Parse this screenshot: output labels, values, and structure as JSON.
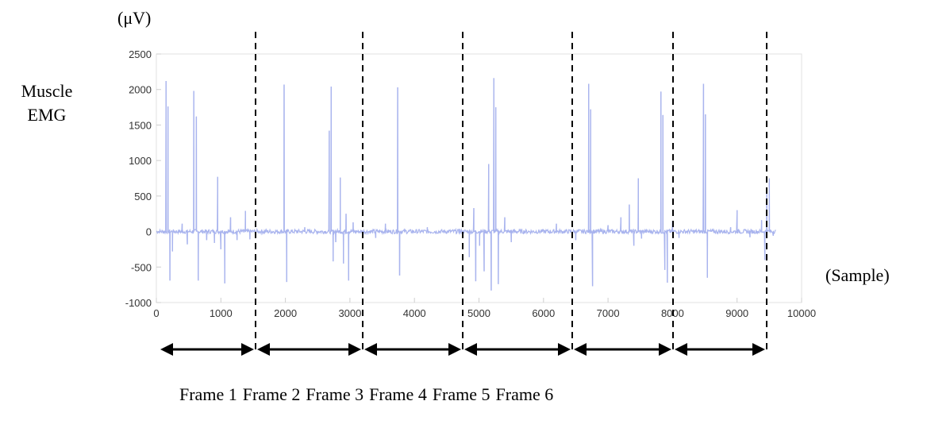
{
  "chart_data": {
    "type": "line",
    "title": "",
    "ylabel_lines": [
      "Muscle",
      "EMG"
    ],
    "yunit": "(μV)",
    "xunit": "(Sample)",
    "xlim": [
      0,
      10000
    ],
    "ylim": [
      -1000,
      2500
    ],
    "xticks": [
      "0",
      "1000",
      "2000",
      "3000",
      "4000",
      "5000",
      "6000",
      "7000",
      "8000",
      "9000",
      "10000"
    ],
    "yticks": [
      "2500",
      "2000",
      "1500",
      "1000",
      "500",
      "0",
      "-500",
      "-1000"
    ],
    "series_color": "#a9b4ee",
    "spikes": [
      {
        "x": 150,
        "y": 2120
      },
      {
        "x": 180,
        "y": 1760
      },
      {
        "x": 210,
        "y": -690
      },
      {
        "x": 250,
        "y": -280
      },
      {
        "x": 400,
        "y": 110
      },
      {
        "x": 480,
        "y": -180
      },
      {
        "x": 580,
        "y": 1980
      },
      {
        "x": 620,
        "y": 1620
      },
      {
        "x": 650,
        "y": -690
      },
      {
        "x": 780,
        "y": -120
      },
      {
        "x": 900,
        "y": -160
      },
      {
        "x": 950,
        "y": 770
      },
      {
        "x": 1000,
        "y": -250
      },
      {
        "x": 1060,
        "y": -730
      },
      {
        "x": 1150,
        "y": 200
      },
      {
        "x": 1250,
        "y": -120
      },
      {
        "x": 1380,
        "y": 290
      },
      {
        "x": 1450,
        "y": -110
      },
      {
        "x": 1980,
        "y": 2070
      },
      {
        "x": 2020,
        "y": -710
      },
      {
        "x": 2300,
        "y": 60
      },
      {
        "x": 2680,
        "y": 1420
      },
      {
        "x": 2710,
        "y": 2040
      },
      {
        "x": 2740,
        "y": -420
      },
      {
        "x": 2780,
        "y": -150
      },
      {
        "x": 2850,
        "y": 760
      },
      {
        "x": 2900,
        "y": -450
      },
      {
        "x": 2940,
        "y": 250
      },
      {
        "x": 2980,
        "y": -690
      },
      {
        "x": 3050,
        "y": 130
      },
      {
        "x": 3400,
        "y": -90
      },
      {
        "x": 3550,
        "y": 110
      },
      {
        "x": 3740,
        "y": 2030
      },
      {
        "x": 3770,
        "y": -620
      },
      {
        "x": 4200,
        "y": 60
      },
      {
        "x": 4700,
        "y": 40
      },
      {
        "x": 4850,
        "y": -360
      },
      {
        "x": 4920,
        "y": 330
      },
      {
        "x": 4950,
        "y": -700
      },
      {
        "x": 5010,
        "y": -200
      },
      {
        "x": 5080,
        "y": -560
      },
      {
        "x": 5150,
        "y": 950
      },
      {
        "x": 5190,
        "y": -830
      },
      {
        "x": 5230,
        "y": 2160
      },
      {
        "x": 5260,
        "y": 1750
      },
      {
        "x": 5300,
        "y": -740
      },
      {
        "x": 5400,
        "y": 200
      },
      {
        "x": 5500,
        "y": -150
      },
      {
        "x": 6200,
        "y": 110
      },
      {
        "x": 6500,
        "y": -120
      },
      {
        "x": 6700,
        "y": 2080
      },
      {
        "x": 6730,
        "y": 1720
      },
      {
        "x": 6760,
        "y": -770
      },
      {
        "x": 7000,
        "y": 90
      },
      {
        "x": 7200,
        "y": 200
      },
      {
        "x": 7330,
        "y": 380
      },
      {
        "x": 7400,
        "y": -200
      },
      {
        "x": 7470,
        "y": 750
      },
      {
        "x": 7520,
        "y": -100
      },
      {
        "x": 7820,
        "y": 1970
      },
      {
        "x": 7850,
        "y": 1640
      },
      {
        "x": 7880,
        "y": -540
      },
      {
        "x": 7920,
        "y": -720
      },
      {
        "x": 8000,
        "y": 150
      },
      {
        "x": 8100,
        "y": -90
      },
      {
        "x": 8480,
        "y": 2080
      },
      {
        "x": 8510,
        "y": 1650
      },
      {
        "x": 8540,
        "y": -650
      },
      {
        "x": 8900,
        "y": 60
      },
      {
        "x": 9000,
        "y": 300
      },
      {
        "x": 9200,
        "y": -80
      },
      {
        "x": 9380,
        "y": 160
      },
      {
        "x": 9430,
        "y": -400
      },
      {
        "x": 9460,
        "y": 580
      },
      {
        "x": 9500,
        "y": 750
      },
      {
        "x": 9560,
        "y": -60
      }
    ],
    "frame_boundaries_px": []
  },
  "frames": [
    "Frame 1",
    "Frame 2",
    "Frame 3",
    "Frame 4",
    "Frame 5",
    "Frame 6"
  ]
}
